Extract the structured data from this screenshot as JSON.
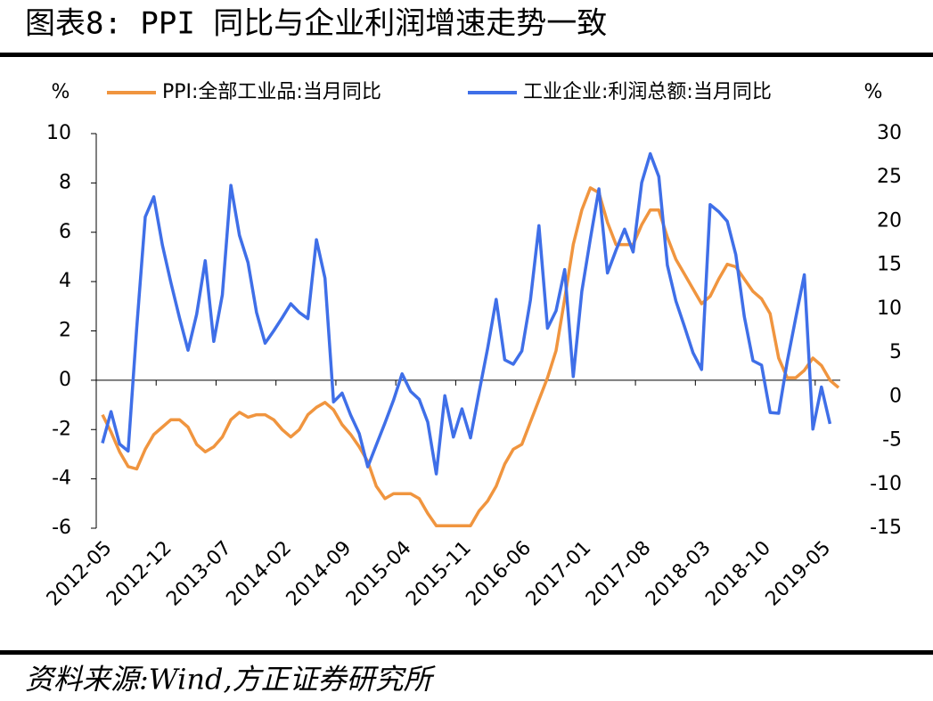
{
  "chart_data": {
    "type": "line",
    "title": "图表8:  PPI 同比与企业利润增速走势一致",
    "source": "资料来源:Wind,方正证券研究所",
    "y_unit": "%",
    "y2_unit": "%",
    "categories": [
      "2012-05",
      null,
      null,
      null,
      null,
      null,
      null,
      "2012-12",
      null,
      null,
      null,
      null,
      null,
      null,
      "2013-07",
      null,
      null,
      null,
      null,
      null,
      null,
      "2014-02",
      null,
      null,
      null,
      null,
      null,
      null,
      "2014-09",
      null,
      null,
      null,
      null,
      null,
      null,
      "2015-04",
      null,
      null,
      null,
      null,
      null,
      null,
      "2015-11",
      null,
      null,
      null,
      null,
      null,
      null,
      "2016-06",
      null,
      null,
      null,
      null,
      null,
      null,
      "2017-01",
      null,
      null,
      null,
      null,
      null,
      null,
      "2017-08",
      null,
      null,
      null,
      null,
      null,
      null,
      "2018-03",
      null,
      null,
      null,
      null,
      null,
      null,
      "2018-10",
      null,
      null,
      null,
      null,
      null,
      null,
      "2019-05",
      null,
      null
    ],
    "series": [
      {
        "name": "PPI:全部工业品:当月同比",
        "color": "#f0953f",
        "axis": "y",
        "values": [
          -1.4,
          -2.1,
          -2.9,
          -3.5,
          -3.6,
          -2.8,
          -2.2,
          -1.9,
          -1.6,
          -1.6,
          -1.9,
          -2.6,
          -2.9,
          -2.7,
          -2.3,
          -1.6,
          -1.3,
          -1.5,
          -1.4,
          -1.4,
          -1.6,
          -2.0,
          -2.3,
          -2.0,
          -1.4,
          -1.1,
          -0.9,
          -1.2,
          -1.8,
          -2.2,
          -2.7,
          -3.3,
          -4.3,
          -4.8,
          -4.6,
          -4.6,
          -4.6,
          -4.8,
          -5.4,
          -5.9,
          -5.9,
          -5.9,
          -5.9,
          -5.9,
          -5.3,
          -4.9,
          -4.3,
          -3.4,
          -2.8,
          -2.6,
          -1.7,
          -0.8,
          0.1,
          1.2,
          3.3,
          5.5,
          6.9,
          7.8,
          7.6,
          6.4,
          5.5,
          5.5,
          5.5,
          6.3,
          6.9,
          6.9,
          5.8,
          4.9,
          4.3,
          3.7,
          3.1,
          3.4,
          4.1,
          4.7,
          4.6,
          4.1,
          3.6,
          3.3,
          2.7,
          0.9,
          0.1,
          0.1,
          0.4,
          0.9,
          0.6,
          0.0,
          -0.3
        ]
      },
      {
        "name": "工业企业:利润总额:当月同比",
        "color": "#3f6fe8",
        "axis": "y2",
        "values": [
          -5.3,
          -1.7,
          -5.4,
          -6.2,
          7.8,
          20.5,
          22.8,
          17.3,
          13,
          9,
          5.3,
          9.4,
          15.5,
          6.3,
          11.6,
          24.1,
          18.4,
          15.3,
          9.6,
          6.1,
          7.5,
          9,
          10.6,
          9.6,
          8.9,
          17.9,
          13.5,
          -0.6,
          0.4,
          -2.1,
          -4.2,
          -8,
          -5.5,
          -3,
          -0.4,
          2.6,
          0.6,
          -0.3,
          -2.9,
          -8.8,
          0.1,
          -4.6,
          -1.4,
          -4.7,
          0.5,
          5.5,
          11.1,
          4.2,
          3.7,
          5.2,
          11,
          19.5,
          7.8,
          9.8,
          14.5,
          2.3,
          12,
          18,
          23.7,
          14.1,
          16.7,
          19.1,
          16.5,
          24.4,
          27.7,
          25.1,
          15,
          10.9,
          8,
          5,
          3.1,
          21.9,
          21.1,
          20,
          16.2,
          9.1,
          4.1,
          3.6,
          -1.8,
          -1.9,
          4,
          9,
          13.9,
          -3.7,
          1.1,
          -3.1,
          null
        ]
      }
    ],
    "ylim": [
      -6,
      10
    ],
    "yticks": [
      -6,
      -4,
      -2,
      0,
      2,
      4,
      6,
      8,
      10
    ],
    "y2lim": [
      -15,
      30
    ],
    "y2ticks": [
      -15,
      -10,
      -5,
      0,
      5,
      10,
      15,
      20,
      25,
      30
    ],
    "legend": "top"
  }
}
